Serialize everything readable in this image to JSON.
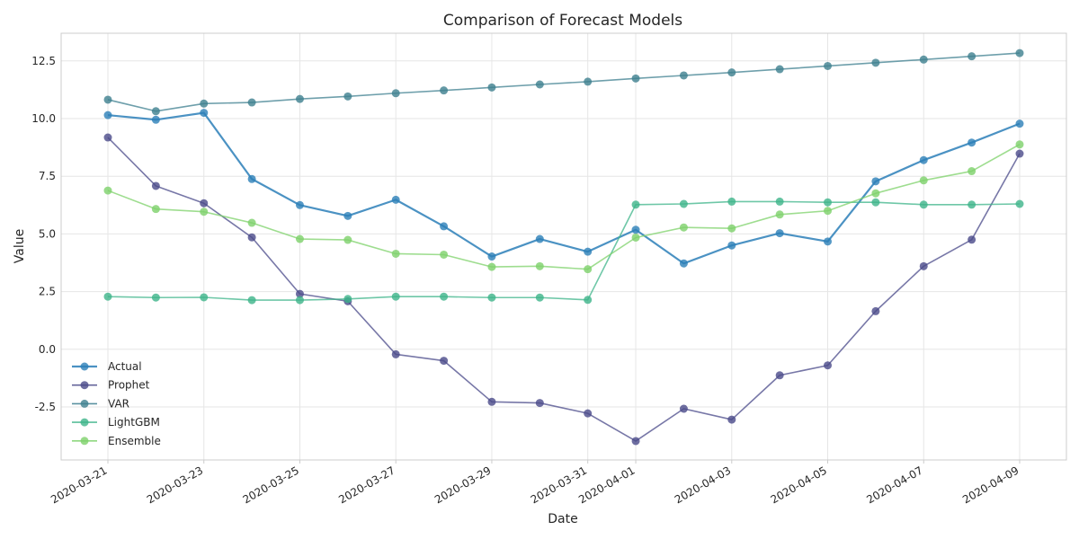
{
  "chart_data": {
    "type": "line",
    "title": "Comparison of Forecast Models",
    "xlabel": "Date",
    "ylabel": "Value",
    "x": [
      "2020-03-21",
      "2020-03-22",
      "2020-03-23",
      "2020-03-24",
      "2020-03-25",
      "2020-03-26",
      "2020-03-27",
      "2020-03-28",
      "2020-03-29",
      "2020-03-30",
      "2020-03-31",
      "2020-04-01",
      "2020-04-02",
      "2020-04-03",
      "2020-04-04",
      "2020-04-05",
      "2020-04-06",
      "2020-04-07",
      "2020-04-08",
      "2020-04-09"
    ],
    "x_tick_labels": [
      "2020-03-21",
      "2020-03-23",
      "2020-03-25",
      "2020-03-27",
      "2020-03-29",
      "2020-03-31",
      "2020-04-01",
      "2020-04-03",
      "2020-04-05",
      "2020-04-07",
      "2020-04-09"
    ],
    "x_tick_positions": [
      "2020-03-21",
      "2020-03-23",
      "2020-03-25",
      "2020-03-27",
      "2020-03-29",
      "2020-03-31",
      "2020-04-01",
      "2020-04-03",
      "2020-04-05",
      "2020-04-07",
      "2020-04-09"
    ],
    "y_ticks": [
      "-2.5",
      "0.0",
      "2.5",
      "5.0",
      "7.5",
      "10.0",
      "12.5"
    ],
    "ylim": [
      -4.8,
      13.7
    ],
    "grid": true,
    "legend_position": "lower-left",
    "series": [
      {
        "name": "Actual",
        "color": "#2c7fb8",
        "values": [
          10.15,
          9.95,
          10.25,
          7.38,
          6.25,
          5.78,
          6.48,
          5.33,
          4.02,
          4.78,
          4.23,
          5.18,
          3.72,
          4.5,
          5.03,
          4.67,
          7.28,
          8.2,
          8.96,
          9.78
        ]
      },
      {
        "name": "Prophet",
        "color": "#4a4a8a",
        "values": [
          9.18,
          7.08,
          6.33,
          4.85,
          2.4,
          2.08,
          -0.22,
          -0.5,
          -2.28,
          -2.33,
          -2.78,
          -3.98,
          -2.58,
          -3.05,
          -1.13,
          -0.7,
          1.65,
          3.6,
          4.75,
          8.48
        ]
      },
      {
        "name": "VAR",
        "color": "#3d7f8f",
        "values": [
          10.82,
          10.32,
          10.65,
          10.7,
          10.85,
          10.96,
          11.1,
          11.22,
          11.35,
          11.48,
          11.6,
          11.74,
          11.87,
          12.0,
          12.14,
          12.28,
          12.42,
          12.56,
          12.7,
          12.84
        ]
      },
      {
        "name": "LightGBM",
        "color": "#3db48a",
        "values": [
          2.28,
          2.24,
          2.25,
          2.13,
          2.13,
          2.18,
          2.28,
          2.28,
          2.24,
          2.24,
          2.14,
          6.27,
          6.3,
          6.4,
          6.4,
          6.37,
          6.37,
          6.27,
          6.27,
          6.3
        ]
      },
      {
        "name": "Ensemble",
        "color": "#7dd16a",
        "values": [
          6.88,
          6.08,
          5.96,
          5.48,
          4.78,
          4.74,
          4.14,
          4.1,
          3.57,
          3.6,
          3.47,
          4.84,
          5.28,
          5.24,
          5.84,
          6.0,
          6.76,
          7.32,
          7.72,
          8.88
        ]
      }
    ]
  }
}
